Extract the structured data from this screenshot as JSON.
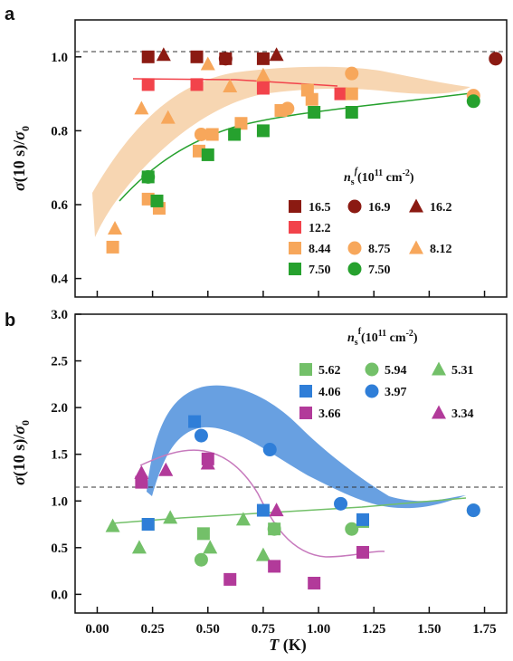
{
  "colors": {
    "dark_red": "#8b1a12",
    "red": "#f2434b",
    "orange": "#f7a75b",
    "orange_band": "#f6cfa5",
    "green": "#26a12e",
    "light_green": "#73c069",
    "blue": "#2f7ed8",
    "blue_band": "#4d8fdc",
    "purple": "#b23a9a",
    "light_purple": "#c77abd"
  },
  "chart_data": [
    {
      "panel": "a",
      "type": "scatter",
      "ylabel": "σ(10 s)/σ0",
      "xlim": [
        -0.1,
        1.85
      ],
      "ylim": [
        0.35,
        1.1
      ],
      "yticks": [
        "0.4",
        "0.6",
        "0.8",
        "1.0"
      ],
      "reference_line": 1.0,
      "legend_title": "n_s^f (10^11 cm^-2)",
      "series": [
        {
          "name": "16.5",
          "marker": "square",
          "color": "#8b1a12",
          "points": [
            [
              0.23,
              1.0
            ],
            [
              0.45,
              1.0
            ],
            [
              0.58,
              0.995
            ],
            [
              0.75,
              0.995
            ]
          ]
        },
        {
          "name": "16.9",
          "marker": "circle",
          "color": "#8b1a12",
          "points": [
            [
              0.58,
              0.995
            ],
            [
              1.8,
              0.995
            ]
          ]
        },
        {
          "name": "16.2",
          "marker": "triangle",
          "color": "#8b1a12",
          "points": [
            [
              0.3,
              1.005
            ],
            [
              0.81,
              1.005
            ]
          ]
        },
        {
          "name": "12.2",
          "marker": "square",
          "color": "#f2434b",
          "points": [
            [
              0.23,
              0.925
            ],
            [
              0.45,
              0.925
            ],
            [
              0.75,
              0.915
            ],
            [
              1.1,
              0.9
            ]
          ]
        },
        {
          "name": "8.44",
          "marker": "square",
          "color": "#f7a75b",
          "points": [
            [
              0.07,
              0.485
            ],
            [
              0.23,
              0.615
            ],
            [
              0.28,
              0.59
            ],
            [
              0.46,
              0.745
            ],
            [
              0.52,
              0.79
            ],
            [
              0.65,
              0.82
            ],
            [
              0.83,
              0.855
            ],
            [
              0.95,
              0.91
            ],
            [
              0.97,
              0.885
            ],
            [
              1.15,
              0.9
            ]
          ]
        },
        {
          "name": "8.75",
          "marker": "circle",
          "color": "#f7a75b",
          "points": [
            [
              0.47,
              0.79
            ],
            [
              0.86,
              0.86
            ],
            [
              1.15,
              0.955
            ],
            [
              1.7,
              0.895
            ]
          ]
        },
        {
          "name": "8.12",
          "marker": "triangle",
          "color": "#f7a75b",
          "points": [
            [
              0.08,
              0.535
            ],
            [
              0.2,
              0.86
            ],
            [
              0.32,
              0.835
            ],
            [
              0.5,
              0.98
            ],
            [
              0.6,
              0.92
            ],
            [
              0.75,
              0.95
            ]
          ]
        },
        {
          "name": "7.50",
          "marker": "square",
          "color": "#26a12e",
          "points": [
            [
              0.23,
              0.675
            ],
            [
              0.27,
              0.61
            ],
            [
              0.5,
              0.735
            ],
            [
              0.62,
              0.79
            ],
            [
              0.75,
              0.8
            ],
            [
              0.98,
              0.85
            ],
            [
              1.15,
              0.85
            ]
          ]
        },
        {
          "name": "7.50",
          "marker": "circle",
          "color": "#26a12e",
          "points": [
            [
              0.23,
              0.675
            ],
            [
              1.7,
              0.88
            ]
          ]
        }
      ]
    },
    {
      "panel": "b",
      "type": "scatter",
      "xlabel": "T (K)",
      "ylabel": "σ(10 s)/σ0",
      "xlim": [
        -0.1,
        1.85
      ],
      "ylim": [
        -0.2,
        3.0
      ],
      "xticks": [
        "0.00",
        "0.25",
        "0.50",
        "0.75",
        "1.00",
        "1.25",
        "1.50",
        "1.75"
      ],
      "yticks": [
        "0.0",
        "0.5",
        "1.0",
        "1.5",
        "2.0",
        "2.5",
        "3.0"
      ],
      "reference_line": 1.0,
      "legend_title": "n_s^f (10^11 cm^-2)",
      "series": [
        {
          "name": "5.62",
          "marker": "square",
          "color": "#73c069",
          "points": [
            [
              0.23,
              0.75
            ],
            [
              0.48,
              0.65
            ],
            [
              0.8,
              0.7
            ],
            [
              1.2,
              0.78
            ]
          ]
        },
        {
          "name": "5.94",
          "marker": "circle",
          "color": "#73c069",
          "points": [
            [
              0.47,
              0.37
            ],
            [
              0.8,
              0.7
            ],
            [
              1.15,
              0.7
            ],
            [
              1.7,
              0.9
            ]
          ]
        },
        {
          "name": "5.31",
          "marker": "triangle",
          "color": "#73c069",
          "points": [
            [
              0.07,
              0.73
            ],
            [
              0.19,
              0.5
            ],
            [
              0.33,
              0.82
            ],
            [
              0.51,
              0.5
            ],
            [
              0.66,
              0.8
            ],
            [
              0.75,
              0.42
            ]
          ]
        },
        {
          "name": "4.06",
          "marker": "square",
          "color": "#2f7ed8",
          "points": [
            [
              0.23,
              0.75
            ],
            [
              0.44,
              1.85
            ],
            [
              0.75,
              0.9
            ],
            [
              1.2,
              0.8
            ]
          ]
        },
        {
          "name": "3.97",
          "marker": "circle",
          "color": "#2f7ed8",
          "points": [
            [
              0.47,
              1.7
            ],
            [
              0.78,
              1.55
            ],
            [
              1.1,
              0.97
            ],
            [
              1.7,
              0.9
            ]
          ]
        },
        {
          "name": "3.66",
          "marker": "square",
          "color": "#b23a9a",
          "points": [
            [
              0.2,
              1.2
            ],
            [
              0.5,
              1.45
            ],
            [
              0.6,
              0.16
            ],
            [
              0.8,
              0.3
            ],
            [
              0.98,
              0.12
            ],
            [
              1.2,
              0.45
            ]
          ]
        },
        {
          "name": "3.34",
          "marker": "triangle",
          "color": "#b23a9a",
          "points": [
            [
              0.2,
              1.3
            ],
            [
              0.31,
              1.33
            ],
            [
              0.5,
              1.4
            ],
            [
              0.81,
              0.9
            ]
          ]
        }
      ]
    }
  ],
  "legend_a": {
    "title": "n",
    "title_sub": "s",
    "title_sup": "f",
    "title_units": "(10",
    "title_exp": "11",
    "title_cm": " cm",
    "title_cmexp": "-2",
    "title_close": ")",
    "rows": [
      [
        "16.5",
        "16.9",
        "16.2"
      ],
      [
        "12.2",
        "",
        ""
      ],
      [
        "8.44",
        "8.75",
        "8.12"
      ],
      [
        "7.50",
        "7.50",
        ""
      ]
    ]
  },
  "legend_b": {
    "rows": [
      [
        "5.62",
        "5.94",
        "5.31"
      ],
      [
        "4.06",
        "3.97",
        ""
      ],
      [
        "3.66",
        "",
        "3.34"
      ]
    ]
  },
  "labels": {
    "panel_a": "a",
    "panel_b": "b",
    "xlabel_T": "T",
    "xlabel_unit": " (K)",
    "sigma": "σ",
    "ten_s": "(10 s)/",
    "sigma0": "σ",
    "zero": "0"
  }
}
